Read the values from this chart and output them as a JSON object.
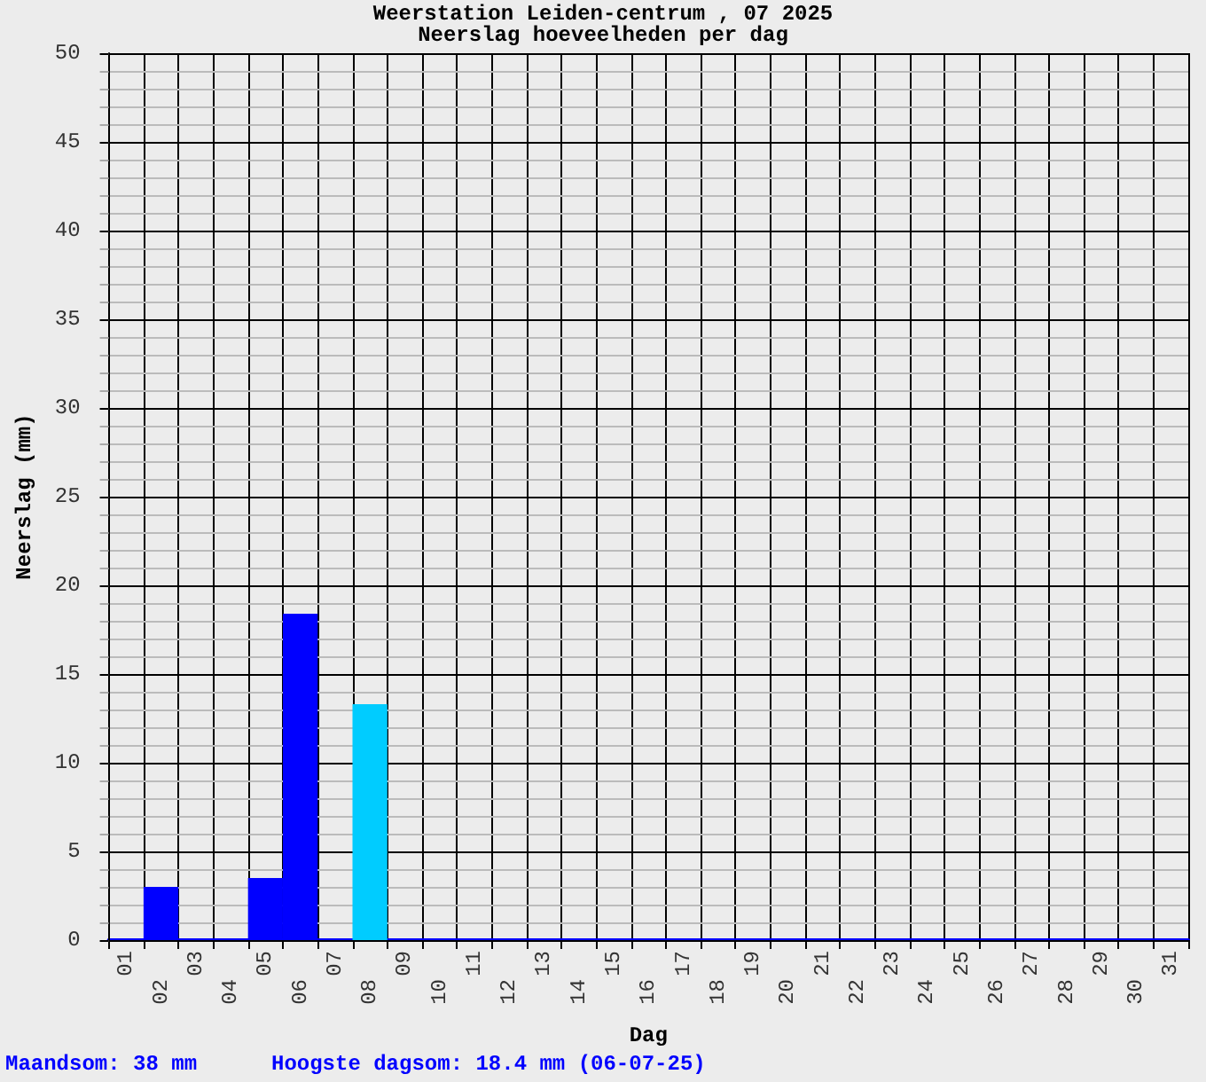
{
  "chart_data": {
    "type": "bar",
    "title": "Weerstation Leiden-centrum , 07 2025",
    "subtitle": "Neerslag hoeveelheden per dag",
    "xlabel": "Dag",
    "ylabel": "Neerslag (mm)",
    "categories": [
      "01",
      "02",
      "03",
      "04",
      "05",
      "06",
      "07",
      "08",
      "09",
      "10",
      "11",
      "12",
      "13",
      "14",
      "15",
      "16",
      "17",
      "18",
      "19",
      "20",
      "21",
      "22",
      "23",
      "24",
      "25",
      "26",
      "27",
      "28",
      "29",
      "30",
      "31"
    ],
    "values": [
      0,
      3.0,
      0,
      0,
      3.5,
      18.4,
      0,
      13.3,
      0,
      0,
      0,
      0,
      0,
      0,
      0,
      0,
      0,
      0,
      0,
      0,
      0,
      0,
      0,
      0,
      0,
      0,
      0,
      0,
      0,
      0,
      0
    ],
    "colors": [
      "#0000ff",
      "#0000ff",
      "#0000ff",
      "#0000ff",
      "#0000ff",
      "#0000ff",
      "#0000ff",
      "#00ccff",
      "#0000ff",
      "#0000ff",
      "#0000ff",
      "#0000ff",
      "#0000ff",
      "#0000ff",
      "#0000ff",
      "#0000ff",
      "#0000ff",
      "#0000ff",
      "#0000ff",
      "#0000ff",
      "#0000ff",
      "#0000ff",
      "#0000ff",
      "#0000ff",
      "#0000ff",
      "#0000ff",
      "#0000ff",
      "#0000ff",
      "#0000ff",
      "#0000ff",
      "#0000ff"
    ],
    "ylim": [
      0,
      50
    ],
    "yticks": [
      0,
      {
        "value": 1,
        "label": null
      },
      {
        "value": 2,
        "label": null
      },
      {
        "value": 3,
        "label": null
      },
      {
        "value": 4,
        "label": null
      },
      5,
      {
        "value": 6,
        "label": null
      },
      {
        "value": 7,
        "label": null
      },
      {
        "value": 8,
        "label": null
      },
      {
        "value": 9,
        "label": null
      },
      10,
      {
        "value": 11,
        "label": null
      },
      {
        "value": 12,
        "label": null
      },
      {
        "value": 13,
        "label": null
      },
      {
        "value": 14,
        "label": null
      },
      15,
      {
        "value": 16,
        "label": null
      },
      {
        "value": 17,
        "label": null
      },
      {
        "value": 18,
        "label": null
      },
      {
        "value": 19,
        "label": null
      },
      20,
      {
        "value": 21,
        "label": null
      },
      {
        "value": 22,
        "label": null
      },
      {
        "value": 23,
        "label": null
      },
      {
        "value": 24,
        "label": null
      },
      25,
      {
        "value": 26,
        "label": null
      },
      {
        "value": 27,
        "label": null
      },
      {
        "value": 28,
        "label": null
      },
      {
        "value": 29,
        "label": null
      },
      30,
      {
        "value": 31,
        "label": null
      },
      {
        "value": 32,
        "label": null
      },
      {
        "value": 33,
        "label": null
      },
      {
        "value": 34,
        "label": null
      },
      35,
      {
        "value": 36,
        "label": null
      },
      {
        "value": 37,
        "label": null
      },
      {
        "value": 38,
        "label": null
      },
      {
        "value": 39,
        "label": null
      },
      40,
      {
        "value": 41,
        "label": null
      },
      {
        "value": 42,
        "label": null
      },
      {
        "value": 43,
        "label": null
      },
      {
        "value": 44,
        "label": null
      },
      45,
      {
        "value": 46,
        "label": null
      },
      {
        "value": 47,
        "label": null
      },
      {
        "value": 48,
        "label": null
      },
      {
        "value": 49,
        "label": null
      },
      50
    ],
    "grid": true,
    "annotations": [
      "Maandsom: 38 mm",
      "Hoogste dagsom: 18.4 mm (06-07-25)"
    ]
  }
}
